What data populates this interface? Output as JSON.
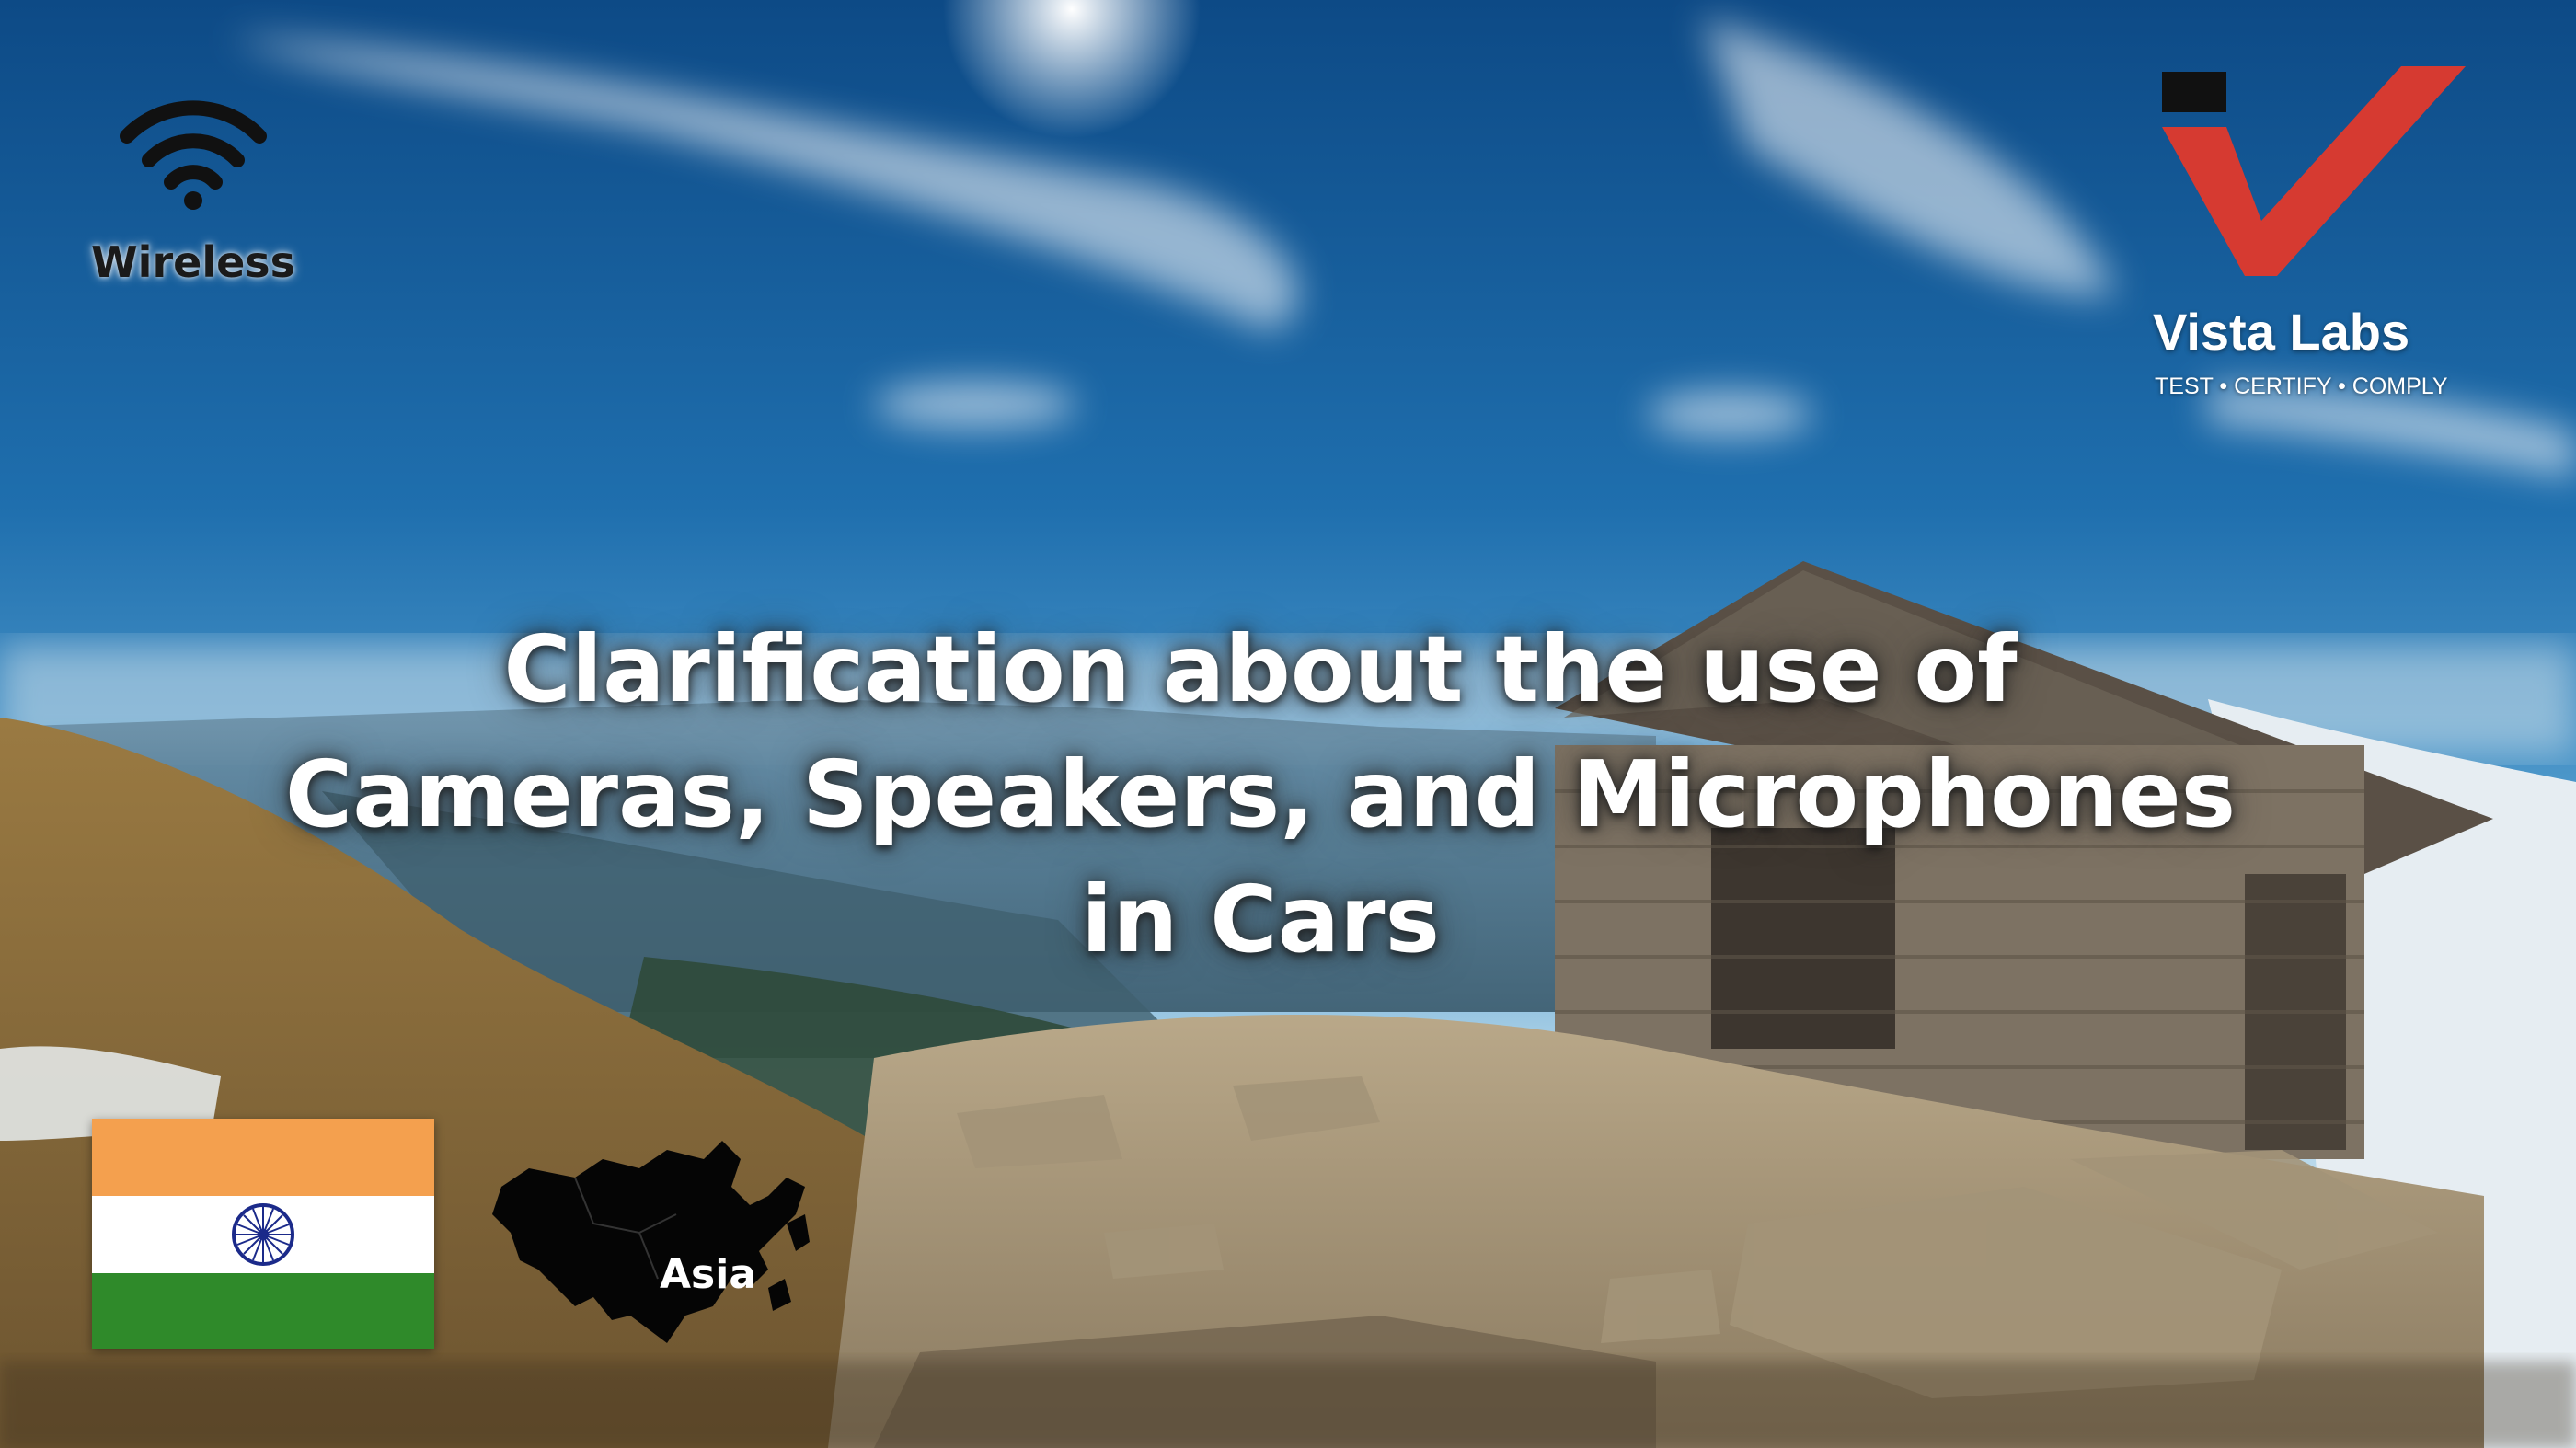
{
  "headline": {
    "line1": "Clarification about the use of",
    "line2": "Cameras, Speakers, and Microphones",
    "line3": "in Cars"
  },
  "badges": {
    "wireless_label": "Wireless",
    "wireless_icon": "wifi-icon",
    "region_label": "Asia",
    "region_icon": "asia-map-icon",
    "country_flag_icon": "india-flag-icon"
  },
  "brand": {
    "name": "Vista Labs",
    "tagline": "TEST • CERTIFY • COMPLY",
    "accent_color": "#d63a31"
  },
  "flag_colors": {
    "saffron": "#f4a04e",
    "white": "#ffffff",
    "green": "#2f8a2a",
    "chakra": "#1b2a8a"
  }
}
